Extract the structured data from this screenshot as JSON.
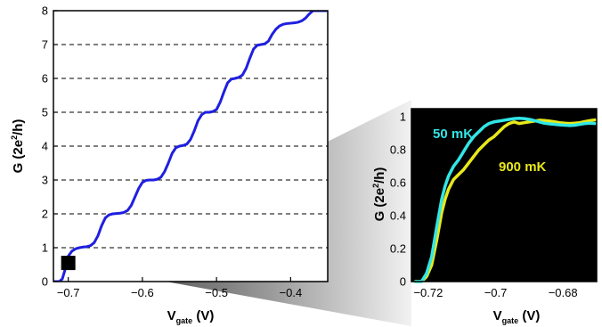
{
  "chart_data": [
    {
      "type": "line",
      "title": "",
      "xlabel": "V",
      "xlabel_sub": "gate",
      "xlabel_unit": " (V)",
      "ylabel_pre": "G (2e",
      "ylabel_sup": "2",
      "ylabel_post": "/h)",
      "xlim": [
        -0.72,
        -0.35
      ],
      "ylim": [
        0,
        8
      ],
      "xticks": [
        -0.7,
        -0.6,
        -0.5,
        -0.4
      ],
      "xtick_labels": [
        "−0.7",
        "−0.6",
        "−0.5",
        "−0.4"
      ],
      "yticks": [
        0,
        1,
        2,
        3,
        4,
        5,
        6,
        7,
        8
      ],
      "ytick_labels": [
        "0",
        "1",
        "2",
        "3",
        "4",
        "5",
        "6",
        "7",
        "8"
      ],
      "grid": "dashed horizontal lines at integer G",
      "background": "#ffffff",
      "series": [
        {
          "color": "#1f1fe0",
          "x": [
            -0.718,
            -0.712,
            -0.708,
            -0.705,
            -0.702,
            -0.7,
            -0.695,
            -0.69,
            -0.685,
            -0.68,
            -0.675,
            -0.67,
            -0.665,
            -0.66,
            -0.655,
            -0.65,
            -0.645,
            -0.64,
            -0.635,
            -0.63,
            -0.625,
            -0.62,
            -0.615,
            -0.61,
            -0.605,
            -0.6,
            -0.595,
            -0.59,
            -0.585,
            -0.58,
            -0.575,
            -0.57,
            -0.565,
            -0.56,
            -0.555,
            -0.55,
            -0.545,
            -0.54,
            -0.535,
            -0.53,
            -0.525,
            -0.52,
            -0.515,
            -0.51,
            -0.505,
            -0.5,
            -0.495,
            -0.49,
            -0.485,
            -0.48,
            -0.475,
            -0.47,
            -0.465,
            -0.46,
            -0.455,
            -0.45,
            -0.445,
            -0.44,
            -0.435,
            -0.43,
            -0.425,
            -0.42,
            -0.415,
            -0.41,
            -0.405,
            -0.4,
            -0.395,
            -0.39,
            -0.385,
            -0.38,
            -0.375,
            -0.37,
            -0.365,
            -0.36,
            -0.355,
            -0.352
          ],
          "y": [
            0.0,
            0.0,
            0.08,
            0.3,
            0.55,
            0.75,
            0.9,
            0.97,
            1.0,
            1.02,
            1.03,
            1.06,
            1.15,
            1.35,
            1.65,
            1.88,
            1.97,
            2.0,
            2.01,
            2.02,
            2.04,
            2.1,
            2.25,
            2.5,
            2.75,
            2.93,
            2.99,
            3.0,
            3.0,
            3.02,
            3.08,
            3.25,
            3.5,
            3.78,
            3.95,
            4.0,
            4.02,
            4.06,
            4.2,
            4.45,
            4.75,
            4.93,
            5.0,
            5.0,
            5.02,
            5.08,
            5.3,
            5.6,
            5.87,
            5.98,
            6.0,
            6.03,
            6.1,
            6.3,
            6.6,
            6.87,
            6.98,
            7.0,
            7.02,
            7.1,
            7.3,
            7.45,
            7.55,
            7.6,
            7.62,
            7.63,
            7.64,
            7.66,
            7.7,
            7.78,
            7.9,
            8.05,
            8.2,
            8.3,
            8.35,
            8.38
          ]
        }
      ],
      "marker": {
        "x": -0.7,
        "y": 0.55,
        "shape": "square",
        "color": "#000000"
      }
    },
    {
      "type": "line",
      "title": "",
      "xlabel": "V",
      "xlabel_sub": "gate",
      "xlabel_unit": " (V)",
      "ylabel_pre": "G (2e",
      "ylabel_sup": "2",
      "ylabel_post": "/h)",
      "xlim": [
        -0.725,
        -0.67
      ],
      "ylim": [
        0,
        1.05
      ],
      "xticks": [
        -0.72,
        -0.7,
        -0.68
      ],
      "xtick_labels": [
        "−0.72",
        "−0.7",
        "−0.68"
      ],
      "yticks": [
        0,
        0.2,
        0.4,
        0.6,
        0.8,
        1
      ],
      "ytick_labels": [
        "0",
        "0.2",
        "0.4",
        "0.6",
        "0.8",
        "1"
      ],
      "grid": "off",
      "background": "#000000",
      "series": [
        {
          "name": "900 mK",
          "color": "#e8e81a",
          "x": [
            -0.7238,
            -0.722,
            -0.7205,
            -0.719,
            -0.7175,
            -0.716,
            -0.715,
            -0.714,
            -0.7125,
            -0.711,
            -0.7095,
            -0.708,
            -0.7065,
            -0.705,
            -0.7035,
            -0.702,
            -0.7005,
            -0.699,
            -0.6975,
            -0.696,
            -0.6945,
            -0.693,
            -0.6915,
            -0.69,
            -0.6885,
            -0.687,
            -0.6855,
            -0.684,
            -0.6825,
            -0.681,
            -0.6795,
            -0.678,
            -0.6765,
            -0.675,
            -0.6735,
            -0.672,
            -0.6705
          ],
          "y": [
            0.0,
            0.0,
            0.03,
            0.1,
            0.25,
            0.42,
            0.5,
            0.56,
            0.62,
            0.65,
            0.68,
            0.72,
            0.76,
            0.8,
            0.83,
            0.86,
            0.88,
            0.91,
            0.94,
            0.96,
            0.97,
            0.96,
            0.965,
            0.97,
            0.975,
            0.98,
            0.978,
            0.975,
            0.97,
            0.965,
            0.962,
            0.96,
            0.962,
            0.965,
            0.972,
            0.978,
            0.982
          ]
        },
        {
          "name": "50 mK",
          "color": "#33e6e6",
          "x": [
            -0.7238,
            -0.722,
            -0.7205,
            -0.719,
            -0.7175,
            -0.716,
            -0.715,
            -0.714,
            -0.7125,
            -0.711,
            -0.7095,
            -0.708,
            -0.7065,
            -0.705,
            -0.7035,
            -0.702,
            -0.7005,
            -0.699,
            -0.6975,
            -0.696,
            -0.6945,
            -0.693,
            -0.6915,
            -0.69,
            -0.6885,
            -0.687,
            -0.6855,
            -0.684,
            -0.6825,
            -0.681,
            -0.6795,
            -0.678,
            -0.6765,
            -0.675,
            -0.6735,
            -0.672,
            -0.6705
          ],
          "y": [
            0.0,
            0.0,
            0.05,
            0.15,
            0.33,
            0.5,
            0.58,
            0.64,
            0.7,
            0.74,
            0.79,
            0.84,
            0.88,
            0.91,
            0.94,
            0.96,
            0.97,
            0.975,
            0.98,
            0.985,
            0.99,
            0.992,
            0.99,
            0.985,
            0.978,
            0.97,
            0.962,
            0.958,
            0.955,
            0.952,
            0.95,
            0.948,
            0.95,
            0.955,
            0.96,
            0.962,
            0.96
          ]
        }
      ]
    }
  ]
}
